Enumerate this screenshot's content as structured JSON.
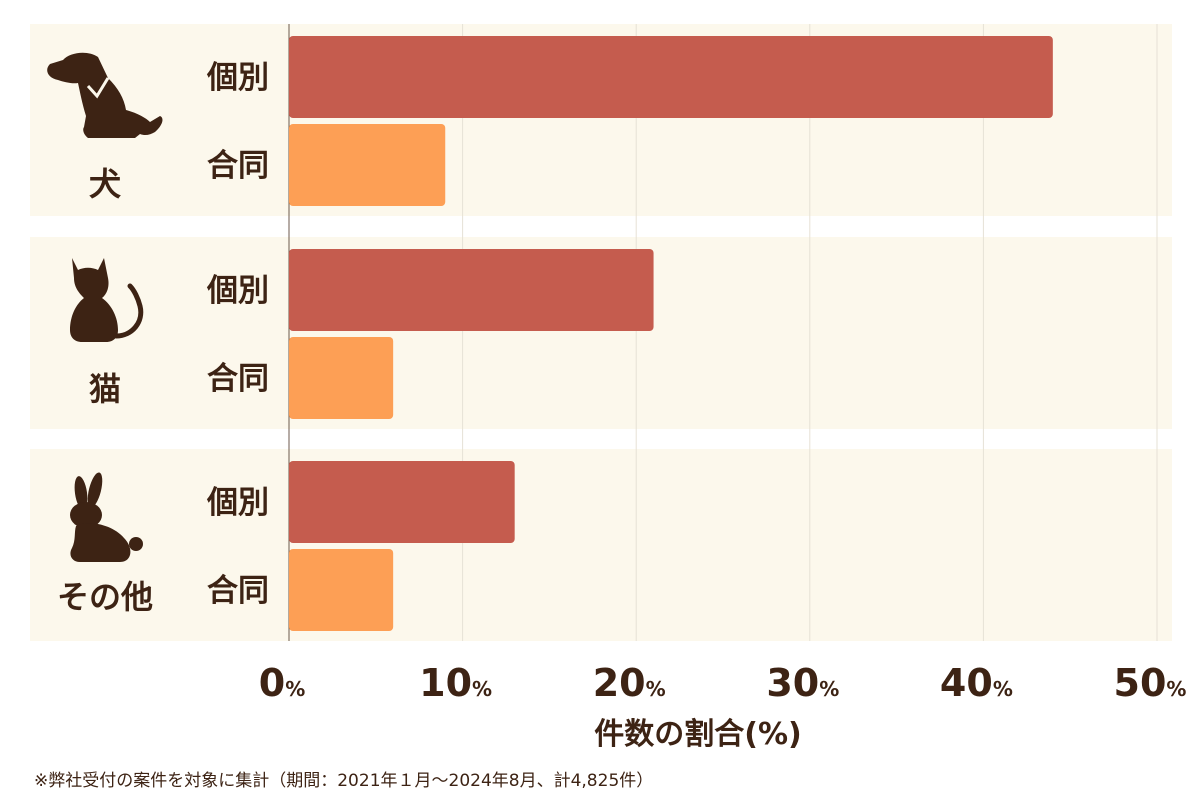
{
  "chart_data": {
    "type": "bar",
    "orientation": "horizontal",
    "categories": [
      "犬",
      "猫",
      "その他"
    ],
    "category_icons": [
      "dog-icon",
      "cat-icon",
      "rabbit-icon"
    ],
    "series": [
      {
        "name": "個別",
        "color": "#c55c4e",
        "values": [
          44,
          21,
          13
        ]
      },
      {
        "name": "合同",
        "color": "#fd9f55",
        "values": [
          9,
          6,
          6
        ]
      }
    ],
    "xticks": [
      0,
      10,
      20,
      30,
      40,
      50
    ],
    "xtick_suffix": "%",
    "xlim": [
      0,
      50
    ],
    "xlabel": "件数の割合(%)",
    "grid": true,
    "background_color": "#fcf8ec",
    "text_color": "#3d2314"
  },
  "footnote": "※弊社受付の案件を対象に集計（期間：2021年１月〜2024年8月、計4,825件）"
}
